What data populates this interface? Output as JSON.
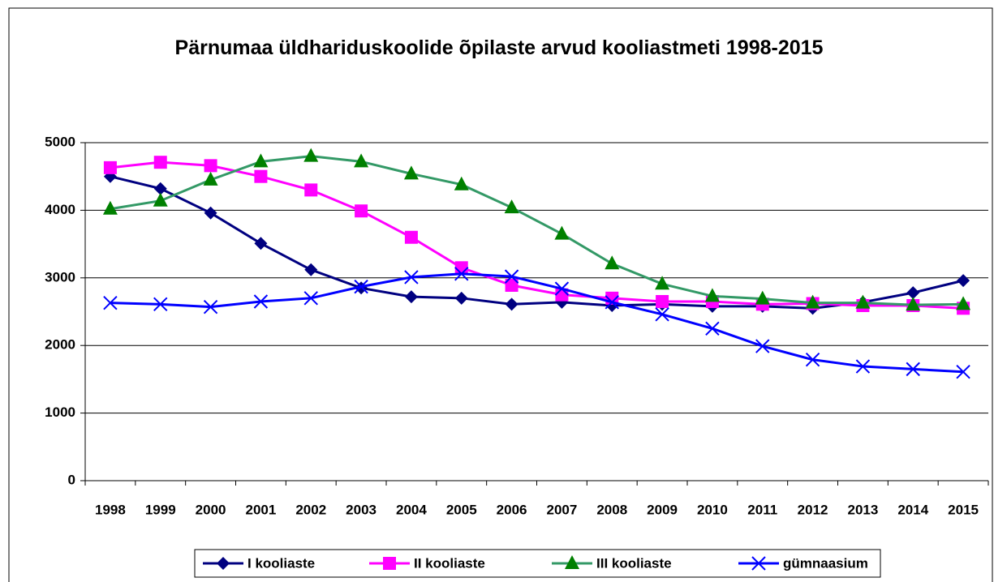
{
  "chart_data": {
    "type": "line",
    "title": "Pärnumaa üldhariduskoolide õpilaste arvud kooliastmeti 1998-2015",
    "categories": [
      "1998",
      "1999",
      "2000",
      "2001",
      "2002",
      "2003",
      "2004",
      "2005",
      "2006",
      "2007",
      "2008",
      "2009",
      "2010",
      "2011",
      "2012",
      "2013",
      "2014",
      "2015"
    ],
    "series": [
      {
        "name": "I kooliaste",
        "color": "#000080",
        "marker": "diamond",
        "values": [
          4500,
          4320,
          3960,
          3510,
          3120,
          2850,
          2720,
          2700,
          2610,
          2640,
          2590,
          2610,
          2580,
          2580,
          2550,
          2640,
          2780,
          2960
        ]
      },
      {
        "name": "II kooliaste",
        "color": "#ff00ff",
        "marker": "square",
        "values": [
          4630,
          4710,
          4660,
          4500,
          4300,
          3990,
          3600,
          3150,
          2890,
          2750,
          2700,
          2650,
          2650,
          2610,
          2620,
          2590,
          2590,
          2550
        ]
      },
      {
        "name": "III kooliaste",
        "color": "#339966",
        "marker_color": "#008000",
        "marker": "triangle",
        "values": [
          4020,
          4140,
          4450,
          4720,
          4800,
          4720,
          4540,
          4380,
          4040,
          3650,
          3210,
          2910,
          2730,
          2690,
          2630,
          2630,
          2600,
          2610
        ]
      },
      {
        "name": "gümnaasium",
        "color": "#0000ff",
        "marker": "x",
        "values": [
          2630,
          2610,
          2570,
          2650,
          2700,
          2870,
          3010,
          3060,
          3020,
          2840,
          2640,
          2460,
          2250,
          1990,
          1790,
          1690,
          1650,
          1610
        ]
      }
    ],
    "ylim": [
      0,
      5000
    ],
    "yticks": [
      0,
      1000,
      2000,
      3000,
      4000,
      5000
    ],
    "grid": true,
    "legend": "bottom"
  }
}
